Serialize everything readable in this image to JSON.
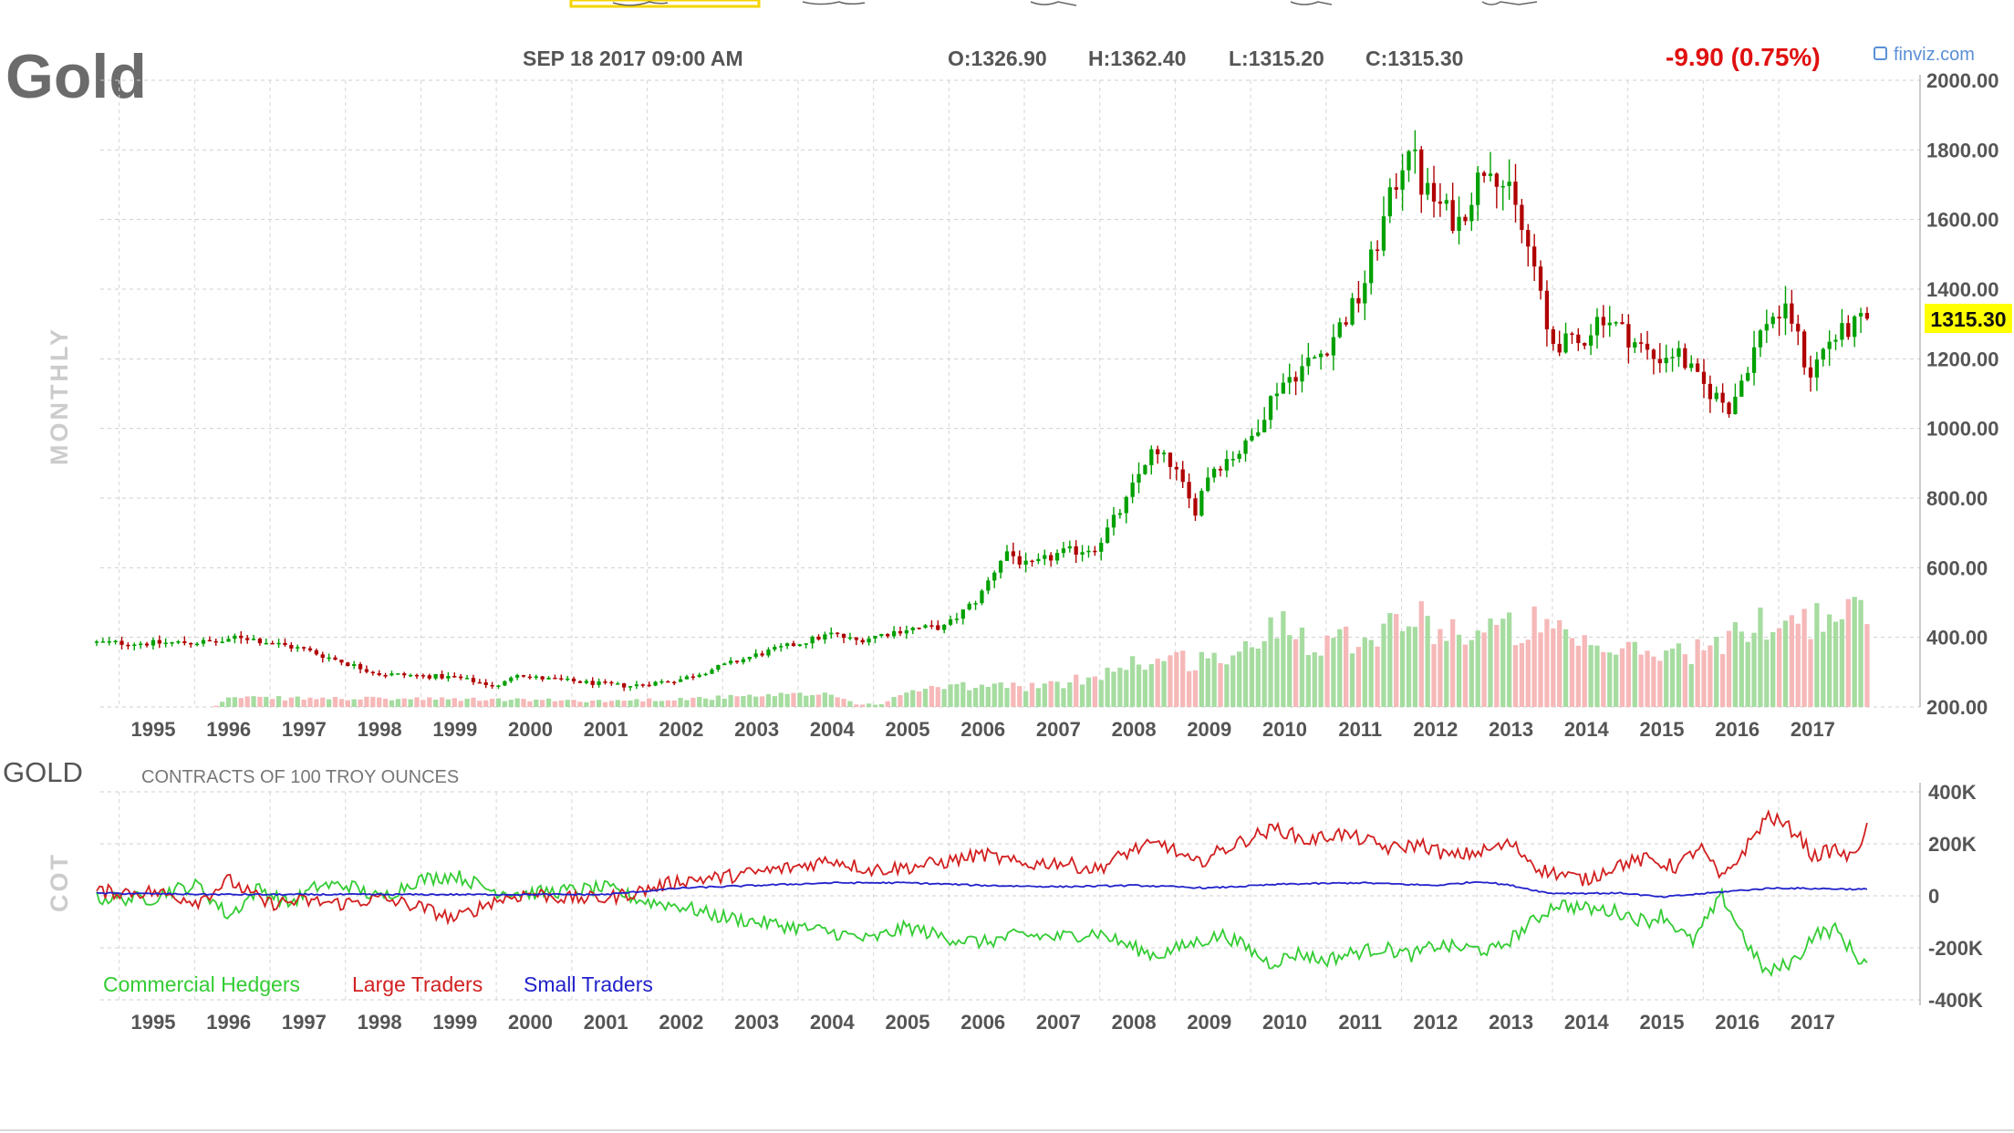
{
  "header": {
    "symbol": "Gold",
    "date": "SEP 18 2017 09:00 AM",
    "open": "O:1326.90",
    "high": "H:1362.40",
    "low": "L:1315.20",
    "close": "C:1315.30",
    "change": "-9.90 (0.75%)",
    "brand": "finviz.com",
    "timeframe": "MONTHLY",
    "last_price": "1315.30"
  },
  "cot": {
    "title": "GOLD",
    "subtitle": "CONTRACTS OF 100 TROY OUNCES",
    "side_label": "COT",
    "legend": [
      "Commercial Hedgers",
      "Large Traders",
      "Small Traders"
    ]
  },
  "colors": {
    "up_candle": "#00a000",
    "down_candle": "#b00000",
    "volume_up": "#a6dca0",
    "volume_down": "#f6b8b8",
    "commercial": "#33cc33",
    "large": "#d22020",
    "small": "#2222cc",
    "change_negative": "#e01010",
    "price_highlight": "#ffff00"
  },
  "chart_data": [
    {
      "type": "candlestick",
      "interval": "monthly",
      "x_ticks": [
        "1995",
        "1996",
        "1997",
        "1998",
        "1999",
        "2000",
        "2001",
        "2002",
        "2003",
        "2004",
        "2005",
        "2006",
        "2007",
        "2008",
        "2009",
        "2010",
        "2011",
        "2012",
        "2013",
        "2014",
        "2015",
        "2016",
        "2017"
      ],
      "y_ticks": [
        "2000.00",
        "1800.00",
        "1600.00",
        "1400.00",
        "1200.00",
        "1000.00",
        "800.00",
        "600.00",
        "400.00",
        "200.00"
      ],
      "ylim": [
        200,
        2000
      ],
      "xlim": [
        1994.25,
        2018.0
      ],
      "price_path": [
        [
          1994.25,
          385
        ],
        [
          1995.0,
          383
        ],
        [
          1996.0,
          388
        ],
        [
          1996.1,
          405
        ],
        [
          1997.0,
          365
        ],
        [
          1998.0,
          295
        ],
        [
          1999.0,
          285
        ],
        [
          1999.6,
          258
        ],
        [
          1999.8,
          300
        ],
        [
          2000.0,
          285
        ],
        [
          2001.0,
          265
        ],
        [
          2001.3,
          260
        ],
        [
          2002.0,
          280
        ],
        [
          2002.5,
          315
        ],
        [
          2003.0,
          350
        ],
        [
          2004.0,
          410
        ],
        [
          2004.3,
          390
        ],
        [
          2005.0,
          425
        ],
        [
          2005.5,
          430
        ],
        [
          2005.95,
          515
        ],
        [
          2006.3,
          650
        ],
        [
          2006.6,
          600
        ],
        [
          2007.0,
          640
        ],
        [
          2007.5,
          660
        ],
        [
          2007.9,
          790
        ],
        [
          2008.2,
          930
        ],
        [
          2008.5,
          900
        ],
        [
          2008.8,
          760
        ],
        [
          2009.0,
          880
        ],
        [
          2009.5,
          950
        ],
        [
          2009.9,
          1120
        ],
        [
          2010.5,
          1220
        ],
        [
          2011.0,
          1380
        ],
        [
          2011.65,
          1830
        ],
        [
          2011.8,
          1700
        ],
        [
          2012.0,
          1650
        ],
        [
          2012.3,
          1590
        ],
        [
          2012.7,
          1780
        ],
        [
          2013.0,
          1660
        ],
        [
          2013.3,
          1470
        ],
        [
          2013.5,
          1250
        ],
        [
          2013.9,
          1240
        ],
        [
          2014.2,
          1330
        ],
        [
          2014.9,
          1200
        ],
        [
          2015.2,
          1220
        ],
        [
          2015.5,
          1130
        ],
        [
          2015.9,
          1060
        ],
        [
          2016.4,
          1320
        ],
        [
          2016.7,
          1330
        ],
        [
          2016.95,
          1150
        ],
        [
          2017.2,
          1250
        ],
        [
          2017.72,
          1315
        ]
      ],
      "volume_levels": [
        [
          1994.25,
          0
        ],
        [
          1995.8,
          0
        ],
        [
          1996.0,
          0.06
        ],
        [
          1999.5,
          0.05
        ],
        [
          2001.0,
          0.04
        ],
        [
          2003.0,
          0.07
        ],
        [
          2004.0,
          0.09
        ],
        [
          2004.3,
          0.02
        ],
        [
          2004.7,
          0.02
        ],
        [
          2005.0,
          0.11
        ],
        [
          2006.0,
          0.14
        ],
        [
          2007.0,
          0.14
        ],
        [
          2008.0,
          0.3
        ],
        [
          2009.0,
          0.32
        ],
        [
          2009.5,
          0.36
        ],
        [
          2010.0,
          0.62
        ],
        [
          2010.3,
          0.45
        ],
        [
          2011.0,
          0.47
        ],
        [
          2011.6,
          0.6
        ],
        [
          2012.5,
          0.48
        ],
        [
          2013.3,
          0.55
        ],
        [
          2014.0,
          0.38
        ],
        [
          2015.0,
          0.36
        ],
        [
          2015.8,
          0.4
        ],
        [
          2016.2,
          0.55
        ],
        [
          2016.7,
          0.6
        ],
        [
          2017.0,
          0.58
        ],
        [
          2017.72,
          0.62
        ]
      ]
    },
    {
      "type": "line",
      "title": "GOLD",
      "subtitle": "CONTRACTS OF 100 TROY OUNCES",
      "x_ticks": [
        "1995",
        "1996",
        "1997",
        "1998",
        "1999",
        "2000",
        "2001",
        "2002",
        "2003",
        "2004",
        "2005",
        "2006",
        "2007",
        "2008",
        "2009",
        "2010",
        "2011",
        "2012",
        "2013",
        "2014",
        "2015",
        "2016",
        "2017"
      ],
      "y_ticks": [
        "400K",
        "200K",
        "0",
        "-200K",
        "-400K"
      ],
      "ylim": [
        -400000,
        400000
      ],
      "series": [
        {
          "name": "Commercial Hedgers",
          "points": [
            [
              1994.25,
              -10000
            ],
            [
              1995.0,
              -10000
            ],
            [
              1995.2,
              20000
            ],
            [
              1995.6,
              40000
            ],
            [
              1996.0,
              -80000
            ],
            [
              1996.4,
              30000
            ],
            [
              1996.8,
              -30000
            ],
            [
              1997.2,
              40000
            ],
            [
              1997.6,
              40000
            ],
            [
              1998.0,
              -10000
            ],
            [
              1998.5,
              60000
            ],
            [
              1999.0,
              80000
            ],
            [
              1999.5,
              20000
            ],
            [
              2000.0,
              10000
            ],
            [
              2000.5,
              20000
            ],
            [
              2001.0,
              30000
            ],
            [
              2001.5,
              -20000
            ],
            [
              2002.0,
              -40000
            ],
            [
              2002.5,
              -80000
            ],
            [
              2003.0,
              -100000
            ],
            [
              2003.5,
              -120000
            ],
            [
              2004.0,
              -140000
            ],
            [
              2004.5,
              -170000
            ],
            [
              2005.0,
              -120000
            ],
            [
              2005.5,
              -160000
            ],
            [
              2006.0,
              -180000
            ],
            [
              2006.5,
              -150000
            ],
            [
              2007.0,
              -160000
            ],
            [
              2007.5,
              -140000
            ],
            [
              2008.0,
              -200000
            ],
            [
              2008.3,
              -230000
            ],
            [
              2008.8,
              -180000
            ],
            [
              2009.2,
              -150000
            ],
            [
              2009.5,
              -200000
            ],
            [
              2009.8,
              -260000
            ],
            [
              2010.2,
              -220000
            ],
            [
              2010.5,
              -250000
            ],
            [
              2010.9,
              -220000
            ],
            [
              2011.3,
              -200000
            ],
            [
              2011.7,
              -230000
            ],
            [
              2012.0,
              -190000
            ],
            [
              2012.3,
              -200000
            ],
            [
              2012.8,
              -210000
            ],
            [
              2013.2,
              -120000
            ],
            [
              2013.6,
              -30000
            ],
            [
              2014.0,
              -50000
            ],
            [
              2014.4,
              -60000
            ],
            [
              2014.8,
              -100000
            ],
            [
              2015.0,
              -70000
            ],
            [
              2015.4,
              -180000
            ],
            [
              2015.8,
              0
            ],
            [
              2016.2,
              -220000
            ],
            [
              2016.4,
              -300000
            ],
            [
              2016.8,
              -240000
            ],
            [
              2017.0,
              -150000
            ],
            [
              2017.3,
              -130000
            ],
            [
              2017.6,
              -240000
            ],
            [
              2017.72,
              -260000
            ]
          ]
        },
        {
          "name": "Large Traders",
          "points": [
            [
              1994.25,
              15000
            ],
            [
              1995.0,
              15000
            ],
            [
              1995.6,
              -20000
            ],
            [
              1996.0,
              60000
            ],
            [
              1996.5,
              -30000
            ],
            [
              1997.0,
              -20000
            ],
            [
              1997.5,
              -30000
            ],
            [
              1998.0,
              -10000
            ],
            [
              1998.5,
              -40000
            ],
            [
              1999.0,
              -90000
            ],
            [
              1999.5,
              -20000
            ],
            [
              2000.0,
              10000
            ],
            [
              2000.5,
              -10000
            ],
            [
              2001.0,
              -10000
            ],
            [
              2001.5,
              20000
            ],
            [
              2002.0,
              60000
            ],
            [
              2002.5,
              70000
            ],
            [
              2003.0,
              90000
            ],
            [
              2003.5,
              110000
            ],
            [
              2004.0,
              140000
            ],
            [
              2004.5,
              100000
            ],
            [
              2005.0,
              110000
            ],
            [
              2005.5,
              130000
            ],
            [
              2006.0,
              160000
            ],
            [
              2006.5,
              120000
            ],
            [
              2007.0,
              130000
            ],
            [
              2007.5,
              100000
            ],
            [
              2008.0,
              180000
            ],
            [
              2008.4,
              200000
            ],
            [
              2008.8,
              120000
            ],
            [
              2009.2,
              180000
            ],
            [
              2009.6,
              230000
            ],
            [
              2009.9,
              260000
            ],
            [
              2010.3,
              210000
            ],
            [
              2010.7,
              240000
            ],
            [
              2011.0,
              220000
            ],
            [
              2011.4,
              180000
            ],
            [
              2011.8,
              200000
            ],
            [
              2012.2,
              150000
            ],
            [
              2012.6,
              170000
            ],
            [
              2013.0,
              200000
            ],
            [
              2013.4,
              100000
            ],
            [
              2013.7,
              80000
            ],
            [
              2014.0,
              60000
            ],
            [
              2014.4,
              120000
            ],
            [
              2014.8,
              140000
            ],
            [
              2015.2,
              110000
            ],
            [
              2015.5,
              190000
            ],
            [
              2015.8,
              60000
            ],
            [
              2016.2,
              220000
            ],
            [
              2016.4,
              310000
            ],
            [
              2016.8,
              240000
            ],
            [
              2017.0,
              150000
            ],
            [
              2017.3,
              180000
            ],
            [
              2017.5,
              140000
            ],
            [
              2017.72,
              260000
            ]
          ]
        },
        {
          "name": "Small Traders",
          "points": [
            [
              1994.25,
              10000
            ],
            [
              1996.0,
              5000
            ],
            [
              1998.0,
              5000
            ],
            [
              2000.0,
              5000
            ],
            [
              2001.0,
              5000
            ],
            [
              2002.0,
              30000
            ],
            [
              2003.0,
              40000
            ],
            [
              2004.0,
              50000
            ],
            [
              2005.0,
              50000
            ],
            [
              2006.0,
              40000
            ],
            [
              2007.0,
              35000
            ],
            [
              2008.0,
              40000
            ],
            [
              2009.0,
              30000
            ],
            [
              2010.0,
              45000
            ],
            [
              2011.0,
              50000
            ],
            [
              2012.0,
              40000
            ],
            [
              2012.6,
              55000
            ],
            [
              2013.0,
              40000
            ],
            [
              2013.5,
              10000
            ],
            [
              2014.5,
              10000
            ],
            [
              2015.0,
              -5000
            ],
            [
              2016.0,
              20000
            ],
            [
              2016.5,
              30000
            ],
            [
              2017.72,
              25000
            ]
          ]
        }
      ]
    }
  ]
}
